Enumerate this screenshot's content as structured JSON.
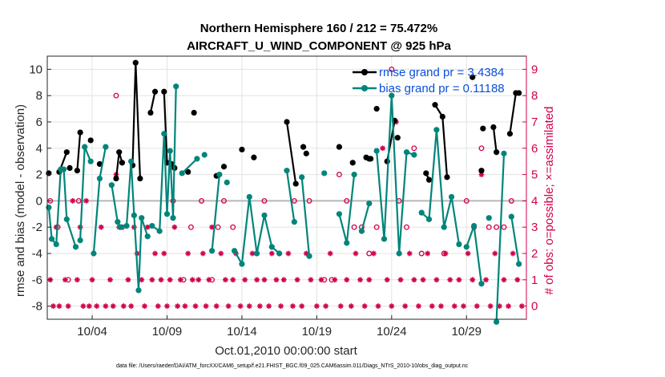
{
  "chart_data": {
    "type": "line",
    "title_line1": "Northern Hemisphere 160 / 212 = 75.472%",
    "title_line2": "AIRCRAFT_U_WIND_COMPONENT @ 925 hPa",
    "xlabel": "Oct.01,2010 00:00:00 start",
    "ylabel": "rmse and bias (model - observation)",
    "ylabel_right": "# of obs: o=possible; ×=assimilated",
    "xlim": [
      1.0,
      33.0
    ],
    "ylim": [
      -9.0,
      11.0
    ],
    "ylim_right": [
      -0.5,
      9.5
    ],
    "x_ticks": [
      {
        "v": 4,
        "label": "10/04"
      },
      {
        "v": 9,
        "label": "10/09"
      },
      {
        "v": 14,
        "label": "10/14"
      },
      {
        "v": 19,
        "label": "10/19"
      },
      {
        "v": 24,
        "label": "10/24"
      },
      {
        "v": 29,
        "label": "10/29"
      }
    ],
    "y_ticks": [
      -8,
      -6,
      -4,
      -2,
      0,
      2,
      4,
      6,
      8,
      10
    ],
    "y_ticks_right": [
      0,
      1,
      2,
      3,
      4,
      5,
      6,
      7,
      8,
      9
    ],
    "legend": {
      "location": "top-right",
      "rmse_label": "rmse grand pr = 3.4384",
      "bias_label": "bias grand pr = 0.11188"
    },
    "series": [
      {
        "name": "rmse",
        "color": "#000000",
        "x": [
          1.1,
          1.8,
          2.3,
          2.5,
          3.0,
          3.2,
          3.9,
          4.5,
          5.6,
          5.8,
          6.0,
          6.7,
          6.9,
          7.2,
          7.9,
          8.2,
          8.8,
          9.0,
          9.3,
          9.5,
          10.4,
          10.8,
          12.3,
          12.8,
          14.0,
          14.8,
          17.0,
          17.6,
          18.1,
          18.3,
          20.5,
          21.4,
          22.3,
          22.5,
          22.6,
          23.0,
          23.7,
          24.2,
          24.4,
          26.3,
          26.5,
          26.9,
          27.4,
          27.7,
          29.4,
          30.0,
          30.1,
          30.8,
          31.0,
          31.9,
          32.3,
          32.5
        ],
        "y": [
          2.1,
          2.2,
          3.7,
          2.5,
          2.3,
          5.2,
          4.6,
          2.8,
          1.7,
          3.7,
          2.9,
          2.7,
          10.5,
          1.7,
          6.7,
          8.3,
          8.3,
          2.9,
          2.8,
          2.5,
          2.2,
          6.7,
          1.9,
          2.6,
          3.9,
          3.3,
          6.0,
          1.3,
          4.1,
          3.6,
          4.1,
          2.9,
          3.3,
          3.2,
          3.2,
          7.0,
          3.0,
          6.1,
          4.8,
          2.1,
          1.6,
          7.3,
          6.4,
          1.8,
          9.4,
          2.3,
          5.5,
          5.6,
          3.7,
          5.1,
          8.2,
          8.2
        ],
        "segments": [
          [
            0
          ],
          [
            1,
            2
          ],
          [
            3
          ],
          [
            4,
            5
          ],
          [
            6
          ],
          [
            7
          ],
          [
            8,
            9,
            10
          ],
          [
            11,
            12,
            13
          ],
          [
            14,
            15
          ],
          [
            16,
            17
          ],
          [
            18
          ],
          [
            19
          ],
          [
            20
          ],
          [
            21
          ],
          [
            22
          ],
          [
            23
          ],
          [
            24
          ],
          [
            25
          ],
          [
            26,
            27
          ],
          [
            28
          ],
          [
            29
          ],
          [
            30
          ],
          [
            31
          ],
          [
            32
          ],
          [
            33
          ],
          [
            34
          ],
          [
            35
          ],
          [
            36,
            37
          ],
          [
            38
          ],
          [
            39,
            40
          ],
          [
            41,
            42,
            43
          ],
          [
            44
          ],
          [
            45
          ],
          [
            46
          ],
          [
            47,
            48
          ],
          [
            49,
            50
          ],
          [
            51
          ]
        ]
      },
      {
        "name": "bias",
        "color": "#00857a",
        "x": [
          1.1,
          1.3,
          1.6,
          1.9,
          2.1,
          2.3,
          2.9,
          3.2,
          3.5,
          3.9,
          4.1,
          4.5,
          4.9,
          5.3,
          5.7,
          5.9,
          6.3,
          6.6,
          6.8,
          7.1,
          7.3,
          7.7,
          8.0,
          8.5,
          8.8,
          9.0,
          9.2,
          9.4,
          9.6,
          10.0,
          11.0,
          11.5,
          12.0,
          12.5,
          13.0,
          13.5,
          14.0,
          14.5,
          15.0,
          15.5,
          16.0,
          16.5,
          17.0,
          17.5,
          18.0,
          18.5,
          19.5,
          20.5,
          21.0,
          21.5,
          22.0,
          22.5,
          23.0,
          23.5,
          24.0,
          24.5,
          25.0,
          25.5,
          26.0,
          26.5,
          27.0,
          27.5,
          28.0,
          28.5,
          29.0,
          29.5,
          30.0,
          30.5,
          31.0,
          31.5,
          32.0,
          32.5
        ],
        "y": [
          -0.5,
          -2.9,
          -3.3,
          2.4,
          2.4,
          -1.4,
          -3.5,
          -3.0,
          4.1,
          3.0,
          -4.0,
          1.7,
          4.1,
          1.2,
          -1.6,
          -2.0,
          -1.9,
          3.0,
          -1.1,
          -6.8,
          -1.3,
          -2.7,
          -1.9,
          -2.3,
          5.1,
          -1.0,
          3.8,
          -1.3,
          8.7,
          2.1,
          3.2,
          3.5,
          -3.8,
          2.0,
          1.4,
          -3.8,
          -4.8,
          0.3,
          -4.0,
          -1.1,
          -3.5,
          -4.0,
          2.3,
          -1.6,
          1.8,
          -4.2,
          2.1,
          -1.0,
          -3.2,
          2.0,
          -2.3,
          -0.2,
          3.8,
          -2.9,
          8.0,
          -4.0,
          3.7,
          3.5,
          -0.9,
          -1.4,
          5.4,
          -2.0,
          0.3,
          -3.3,
          -3.5,
          -1.9,
          -6.3,
          -1.3,
          -9.2,
          3.6,
          -1.2,
          -4.8
        ],
        "segments": [
          [
            0,
            1,
            2,
            3
          ],
          [
            4,
            5,
            6
          ],
          [
            7,
            8,
            9
          ],
          [
            10,
            11,
            12
          ],
          [
            13,
            14,
            15,
            16,
            17,
            18,
            19,
            20,
            21
          ],
          [
            22,
            23,
            24,
            25,
            26,
            27,
            28
          ],
          [
            29,
            30
          ],
          [
            31
          ],
          [
            32,
            33
          ],
          [
            34
          ],
          [
            35,
            36,
            37,
            38,
            39,
            40,
            41
          ],
          [
            42,
            43
          ],
          [
            44,
            45
          ],
          [
            46
          ],
          [
            47,
            48,
            49
          ],
          [
            50,
            51
          ],
          [
            52,
            53,
            54,
            55,
            56,
            57
          ],
          [
            58,
            59,
            60,
            61,
            62,
            63
          ],
          [
            64,
            65,
            66
          ],
          [
            67
          ],
          [
            68,
            69
          ],
          [
            70,
            71
          ]
        ]
      }
    ],
    "obs_possible": {
      "color": "#d2004d",
      "x": [
        1.2,
        1.7,
        2.4,
        3.1,
        5.6,
        6.0,
        9.4,
        10.1,
        10.6,
        11.3,
        12.0,
        12.4,
        12.8,
        13.4,
        15.5,
        17.5,
        18.5,
        19.5,
        20.0,
        20.5,
        21.0,
        21.5,
        22.0,
        22.5,
        23.0,
        24.0,
        24.5,
        25.0,
        25.5,
        26.0,
        27.5,
        29.0,
        29.5,
        30.0,
        30.5,
        31.0,
        31.5,
        32.0
      ],
      "y": [
        4,
        3,
        1,
        4,
        8,
        3,
        4,
        1,
        3,
        4,
        1,
        3,
        4,
        3,
        4,
        4,
        4,
        1,
        1,
        5,
        4,
        3,
        3,
        2,
        3,
        9,
        4,
        3,
        6,
        2,
        2,
        4,
        3,
        6,
        3,
        3,
        3,
        4
      ]
    },
    "obs_assimilated": {
      "color": "#d2004d",
      "x": [
        1.2,
        1.4,
        1.6,
        1.8,
        2.2,
        2.4,
        2.7,
        3.0,
        3.2,
        3.4,
        3.6,
        3.8,
        4.0,
        4.3,
        4.6,
        4.9,
        5.2,
        5.4,
        5.6,
        5.8,
        6.1,
        6.4,
        6.6,
        6.8,
        7.0,
        7.3,
        7.5,
        7.7,
        8.0,
        8.2,
        8.4,
        8.6,
        8.8,
        9.0,
        9.2,
        9.5,
        9.7,
        9.9,
        10.2,
        10.4,
        10.7,
        10.9,
        11.1,
        11.4,
        11.6,
        11.8,
        12.0,
        12.3,
        12.6,
        12.9,
        13.1,
        13.4,
        13.6,
        13.9,
        14.2,
        14.5,
        14.7,
        15.0,
        15.2,
        15.5,
        15.8,
        16.0,
        16.3,
        16.6,
        16.8,
        17.1,
        17.4,
        17.7,
        18.0,
        18.3,
        18.6,
        19.0,
        19.3,
        19.6,
        19.9,
        20.2,
        20.6,
        21.0,
        21.3,
        21.6,
        21.9,
        22.2,
        22.5,
        22.8,
        23.1,
        23.4,
        23.7,
        24.0,
        24.3,
        24.6,
        24.9,
        25.2,
        25.5,
        25.8,
        26.1,
        26.4,
        26.7,
        27.0,
        27.3,
        27.6,
        27.9,
        28.2,
        28.5,
        28.8,
        29.1,
        29.4,
        29.7,
        30.0,
        30.3,
        30.6,
        30.9,
        31.2,
        31.5,
        31.8,
        32.1,
        32.4,
        32.7
      ],
      "y": [
        1,
        0,
        3,
        0,
        1,
        0,
        4,
        1,
        3,
        0,
        4,
        0,
        1,
        0,
        3,
        0,
        1,
        0,
        5,
        3,
        0,
        1,
        0,
        3,
        2,
        1,
        0,
        3,
        1,
        2,
        0,
        1,
        2,
        0,
        1,
        3,
        0,
        1,
        0,
        2,
        1,
        0,
        1,
        2,
        0,
        1,
        3,
        0,
        2,
        1,
        0,
        1,
        2,
        0,
        1,
        0,
        2,
        1,
        0,
        1,
        0,
        2,
        1,
        0,
        1,
        2,
        0,
        1,
        0,
        2,
        1,
        0,
        1,
        0,
        2,
        1,
        0,
        1,
        0,
        2,
        1,
        0,
        1,
        2,
        0,
        6,
        1,
        0,
        7,
        1,
        0,
        2,
        1,
        0,
        1,
        2,
        0,
        1,
        0,
        2,
        1,
        0,
        1,
        0,
        2,
        1,
        0,
        5,
        1,
        0,
        2,
        0,
        1,
        0,
        2,
        1,
        0
      ]
    }
  },
  "footer": "data file: /Users/raeder/DAI/ATM_forcXX/CAM6_setup/f.e21.FHIST_BGC.f09_025.CAM6assim.011/Diags_NTrS_2010-10/obs_diag_output.nc"
}
